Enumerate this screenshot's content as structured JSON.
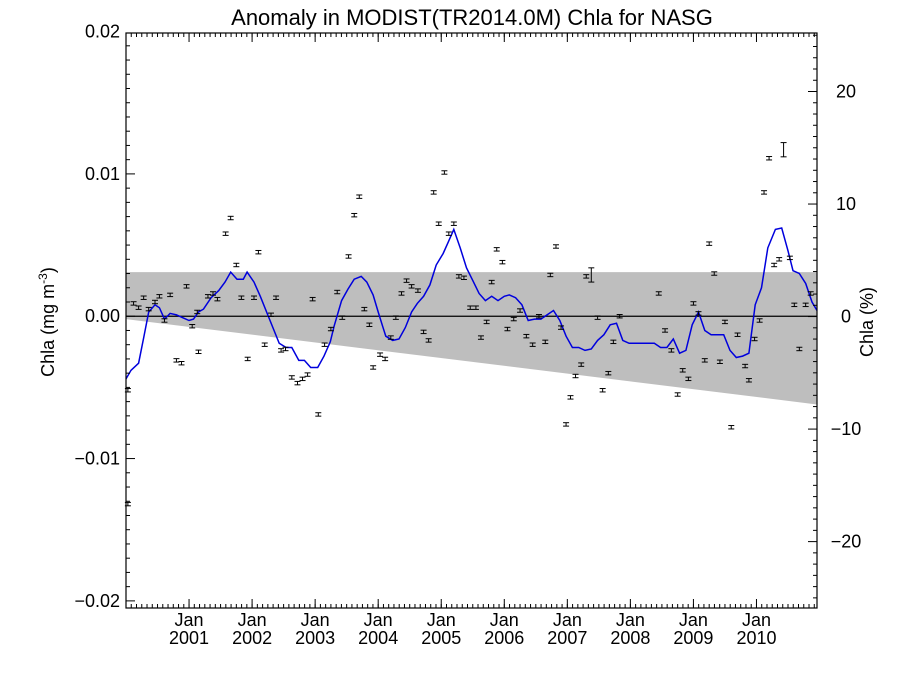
{
  "chart_data": {
    "type": "line",
    "title": "Anomaly in MODIST(TR2014.0M) Chla for NASG",
    "ylabel": "Chla (mg m",
    "ylabel_sup": "-3",
    "ylabel_close": ")",
    "y2label": "Chla (%)",
    "xlim": [
      2000.0,
      2010.96
    ],
    "ylim": [
      -0.0205,
      0.0199
    ],
    "y2lim": [
      -25.9,
      25.2
    ],
    "x_major_ticks": [
      2001,
      2002,
      2003,
      2004,
      2005,
      2006,
      2007,
      2008,
      2009,
      2010
    ],
    "x_tick_labels": [
      {
        "month": "Jan",
        "year": "2001"
      },
      {
        "month": "Jan",
        "year": "2002"
      },
      {
        "month": "Jan",
        "year": "2003"
      },
      {
        "month": "Jan",
        "year": "2004"
      },
      {
        "month": "Jan",
        "year": "2005"
      },
      {
        "month": "Jan",
        "year": "2006"
      },
      {
        "month": "Jan",
        "year": "2007"
      },
      {
        "month": "Jan",
        "year": "2008"
      },
      {
        "month": "Jan",
        "year": "2009"
      },
      {
        "month": "Jan",
        "year": "2010"
      }
    ],
    "y_ticks": [
      {
        "value": -0.02,
        "label": "−0.02"
      },
      {
        "value": -0.01,
        "label": "−0.01"
      },
      {
        "value": 0.0,
        "label": "0.00"
      },
      {
        "value": 0.01,
        "label": "0.01"
      },
      {
        "value": 0.02,
        "label": "0.02"
      }
    ],
    "y2_ticks": [
      {
        "value": -20,
        "label": "−20"
      },
      {
        "value": -10,
        "label": "−10"
      },
      {
        "value": 0,
        "label": "0"
      },
      {
        "value": 10,
        "label": "10"
      },
      {
        "value": 20,
        "label": "20"
      }
    ],
    "zero_line": 0.0,
    "uncertainty_band": {
      "upper": [
        [
          2000.0,
          0.0031
        ],
        [
          2010.96,
          0.0031
        ]
      ],
      "lower": [
        [
          2000.0,
          -0.0002
        ],
        [
          2010.96,
          -0.0062
        ]
      ],
      "color": "#bebebe"
    },
    "series": [
      {
        "style": "line",
        "color": "#0000dd",
        "points": [
          [
            2000.0,
            -0.0044
          ],
          [
            2000.08,
            -0.0038
          ],
          [
            2000.2,
            -0.0033
          ],
          [
            2000.28,
            -0.0015
          ],
          [
            2000.36,
            0.0003
          ],
          [
            2000.46,
            0.0008
          ],
          [
            2000.53,
            0.0006
          ],
          [
            2000.61,
            -0.0002
          ],
          [
            2000.7,
            0.0002
          ],
          [
            2000.8,
            0.0001
          ],
          [
            2000.9,
            -0.0001
          ],
          [
            2001.0,
            -0.0003
          ],
          [
            2001.07,
            -0.0002
          ],
          [
            2001.15,
            0.0003
          ],
          [
            2001.23,
            0.0005
          ],
          [
            2001.35,
            0.0013
          ],
          [
            2001.47,
            0.0018
          ],
          [
            2001.57,
            0.0024
          ],
          [
            2001.66,
            0.0031
          ],
          [
            2001.76,
            0.0026
          ],
          [
            2001.86,
            0.0026
          ],
          [
            2001.92,
            0.0031
          ],
          [
            2002.03,
            0.0024
          ],
          [
            2002.13,
            0.0014
          ],
          [
            2002.23,
            0.0003
          ],
          [
            2002.33,
            -0.0008
          ],
          [
            2002.43,
            -0.0019
          ],
          [
            2002.54,
            -0.0022
          ],
          [
            2002.63,
            -0.0022
          ],
          [
            2002.74,
            -0.0031
          ],
          [
            2002.83,
            -0.0031
          ],
          [
            2002.93,
            -0.0036
          ],
          [
            2003.04,
            -0.0036
          ],
          [
            2003.14,
            -0.0028
          ],
          [
            2003.24,
            -0.0018
          ],
          [
            2003.3,
            -0.0007
          ],
          [
            2003.42,
            0.0011
          ],
          [
            2003.52,
            0.0019
          ],
          [
            2003.62,
            0.0026
          ],
          [
            2003.73,
            0.0028
          ],
          [
            2003.82,
            0.0024
          ],
          [
            2003.92,
            0.0015
          ],
          [
            2004.0,
            0.0003
          ],
          [
            2004.07,
            -0.0007
          ],
          [
            2004.12,
            -0.0014
          ],
          [
            2004.23,
            -0.0017
          ],
          [
            2004.33,
            -0.0016
          ],
          [
            2004.43,
            -0.0008
          ],
          [
            2004.53,
            0.0003
          ],
          [
            2004.62,
            0.0009
          ],
          [
            2004.72,
            0.0014
          ],
          [
            2004.82,
            0.0022
          ],
          [
            2004.92,
            0.0036
          ],
          [
            2005.03,
            0.0044
          ],
          [
            2005.11,
            0.0052
          ],
          [
            2005.2,
            0.0061
          ],
          [
            2005.3,
            0.0048
          ],
          [
            2005.4,
            0.0034
          ],
          [
            2005.5,
            0.0025
          ],
          [
            2005.6,
            0.0016
          ],
          [
            2005.7,
            0.0011
          ],
          [
            2005.8,
            0.0014
          ],
          [
            2005.9,
            0.0011
          ],
          [
            2006.0,
            0.0014
          ],
          [
            2006.08,
            0.0015
          ],
          [
            2006.18,
            0.0013
          ],
          [
            2006.28,
            0.0008
          ],
          [
            2006.38,
            -0.0003
          ],
          [
            2006.48,
            -0.0002
          ],
          [
            2006.58,
            -0.0002
          ],
          [
            2006.68,
            0.0001
          ],
          [
            2006.78,
            0.0004
          ],
          [
            2006.88,
            -0.0003
          ],
          [
            2006.98,
            -0.0014
          ],
          [
            2007.08,
            -0.0022
          ],
          [
            2007.18,
            -0.0022
          ],
          [
            2007.28,
            -0.0024
          ],
          [
            2007.38,
            -0.0023
          ],
          [
            2007.48,
            -0.0017
          ],
          [
            2007.58,
            -0.0013
          ],
          [
            2007.68,
            -0.0006
          ],
          [
            2007.78,
            -0.0005
          ],
          [
            2007.88,
            -0.0017
          ],
          [
            2007.98,
            -0.0019
          ],
          [
            2008.08,
            -0.0019
          ],
          [
            2008.18,
            -0.0019
          ],
          [
            2008.28,
            -0.0019
          ],
          [
            2008.38,
            -0.0019
          ],
          [
            2008.48,
            -0.0022
          ],
          [
            2008.58,
            -0.0022
          ],
          [
            2008.68,
            -0.0016
          ],
          [
            2008.78,
            -0.0026
          ],
          [
            2008.88,
            -0.0024
          ],
          [
            2008.98,
            -0.0006
          ],
          [
            2009.08,
            0.0003
          ],
          [
            2009.18,
            -0.001
          ],
          [
            2009.28,
            -0.0013
          ],
          [
            2009.38,
            -0.0013
          ],
          [
            2009.48,
            -0.0013
          ],
          [
            2009.58,
            -0.0024
          ],
          [
            2009.68,
            -0.0029
          ],
          [
            2009.78,
            -0.0028
          ],
          [
            2009.88,
            -0.0026
          ],
          [
            2009.98,
            0.0008
          ],
          [
            2010.08,
            0.002
          ],
          [
            2010.18,
            0.0048
          ],
          [
            2010.3,
            0.0061
          ],
          [
            2010.4,
            0.0062
          ],
          [
            2010.5,
            0.0046
          ],
          [
            2010.58,
            0.0032
          ],
          [
            2010.68,
            0.003
          ],
          [
            2010.78,
            0.0023
          ],
          [
            2010.88,
            0.001
          ],
          [
            2010.96,
            0.0004
          ]
        ]
      },
      {
        "style": "errorbar",
        "color": "#000000",
        "points": [
          [
            2000.03,
            -0.0132
          ],
          [
            2000.03,
            -0.0052
          ],
          [
            2000.12,
            0.0009
          ],
          [
            2000.2,
            0.0006
          ],
          [
            2000.28,
            0.0013
          ],
          [
            2000.36,
            0.0005
          ],
          [
            2000.46,
            0.001
          ],
          [
            2000.53,
            0.0014
          ],
          [
            2000.61,
            -0.0003
          ],
          [
            2000.7,
            0.0015
          ],
          [
            2000.8,
            -0.0031
          ],
          [
            2000.88,
            -0.0033
          ],
          [
            2000.96,
            0.0021
          ],
          [
            2001.05,
            -0.0007
          ],
          [
            2001.15,
            -0.0025
          ],
          [
            2001.13,
            0.0003
          ],
          [
            2001.3,
            0.0014
          ],
          [
            2001.38,
            0.0016
          ],
          [
            2001.45,
            0.0012
          ],
          [
            2001.58,
            0.0058
          ],
          [
            2001.66,
            0.0069
          ],
          [
            2001.75,
            0.0036
          ],
          [
            2001.83,
            0.0013
          ],
          [
            2001.93,
            -0.003
          ],
          [
            2002.03,
            0.0013
          ],
          [
            2002.1,
            0.0045
          ],
          [
            2002.2,
            -0.002
          ],
          [
            2002.3,
            0.0001
          ],
          [
            2002.38,
            0.0013
          ],
          [
            2002.46,
            -0.0024
          ],
          [
            2002.53,
            -0.0023
          ],
          [
            2002.63,
            -0.0043
          ],
          [
            2002.72,
            -0.0047
          ],
          [
            2002.8,
            -0.0044
          ],
          [
            2002.88,
            -0.0041
          ],
          [
            2002.96,
            0.0012
          ],
          [
            2003.05,
            -0.0069
          ],
          [
            2003.15,
            -0.002
          ],
          [
            2003.25,
            -0.0009
          ],
          [
            2003.35,
            0.0017
          ],
          [
            2003.43,
            -0.0001
          ],
          [
            2003.53,
            0.0042
          ],
          [
            2003.62,
            0.0071
          ],
          [
            2003.7,
            0.0084
          ],
          [
            2003.78,
            0.0005
          ],
          [
            2003.86,
            -0.0006
          ],
          [
            2003.92,
            -0.0036
          ],
          [
            2004.03,
            -0.0027
          ],
          [
            2004.11,
            -0.003
          ],
          [
            2004.2,
            -0.0015
          ],
          [
            2004.28,
            -0.0001
          ],
          [
            2004.37,
            0.0016
          ],
          [
            2004.45,
            0.0025
          ],
          [
            2004.53,
            0.0021
          ],
          [
            2004.63,
            0.0018
          ],
          [
            2004.72,
            -0.0011
          ],
          [
            2004.8,
            -0.0017
          ],
          [
            2004.88,
            0.0087
          ],
          [
            2004.96,
            0.0065
          ],
          [
            2005.05,
            0.0101
          ],
          [
            2005.12,
            0.0058
          ],
          [
            2005.2,
            0.0065
          ],
          [
            2005.28,
            0.0028
          ],
          [
            2005.36,
            0.0027
          ],
          [
            2005.46,
            0.0006
          ],
          [
            2005.55,
            0.0006
          ],
          [
            2005.63,
            -0.0015
          ],
          [
            2005.72,
            -0.0004
          ],
          [
            2005.8,
            0.0024
          ],
          [
            2005.88,
            0.0047
          ],
          [
            2005.97,
            0.0038
          ],
          [
            2006.05,
            -0.0009
          ],
          [
            2006.15,
            -0.0002
          ],
          [
            2006.25,
            0.0004
          ],
          [
            2006.35,
            -0.0014
          ],
          [
            2006.45,
            -0.002
          ],
          [
            2006.55,
            0.0
          ],
          [
            2006.65,
            -0.0018
          ],
          [
            2006.73,
            0.0029
          ],
          [
            2006.82,
            0.0049
          ],
          [
            2006.9,
            -0.0008
          ],
          [
            2006.98,
            -0.0076
          ],
          [
            2007.05,
            -0.0057
          ],
          [
            2007.13,
            -0.0042
          ],
          [
            2007.22,
            -0.0034
          ],
          [
            2007.3,
            0.0028
          ],
          [
            2007.38,
            0.0029
          ],
          [
            2007.48,
            -0.0001
          ],
          [
            2007.56,
            -0.0052
          ],
          [
            2007.65,
            -0.004
          ],
          [
            2007.73,
            -0.0018
          ],
          [
            2007.83,
            0.0
          ],
          [
            2008.45,
            0.0016
          ],
          [
            2008.55,
            -0.001
          ],
          [
            2008.65,
            -0.0024
          ],
          [
            2008.75,
            -0.0055
          ],
          [
            2008.83,
            -0.0038
          ],
          [
            2008.92,
            -0.0044
          ],
          [
            2009.0,
            0.0009
          ],
          [
            2009.08,
            0.0002
          ],
          [
            2009.18,
            -0.0031
          ],
          [
            2009.25,
            0.0051
          ],
          [
            2009.33,
            0.003
          ],
          [
            2009.42,
            -0.0032
          ],
          [
            2009.5,
            -0.0004
          ],
          [
            2009.6,
            -0.0078
          ],
          [
            2009.7,
            -0.0013
          ],
          [
            2009.82,
            -0.0035
          ],
          [
            2009.88,
            -0.0045
          ],
          [
            2009.97,
            -0.0016
          ],
          [
            2010.05,
            -0.0003
          ],
          [
            2010.12,
            0.0087
          ],
          [
            2010.2,
            0.0111
          ],
          [
            2010.28,
            0.0036
          ],
          [
            2010.36,
            0.004
          ],
          [
            2010.43,
            0.0117
          ],
          [
            2010.53,
            0.0041
          ],
          [
            2010.6,
            0.0008
          ],
          [
            2010.68,
            -0.0023
          ],
          [
            2010.78,
            0.0008
          ],
          [
            2010.86,
            0.0016
          ]
        ]
      }
    ],
    "errorbar_halfheight": {
      "default": 0.00012,
      "big": 0.0005
    }
  }
}
